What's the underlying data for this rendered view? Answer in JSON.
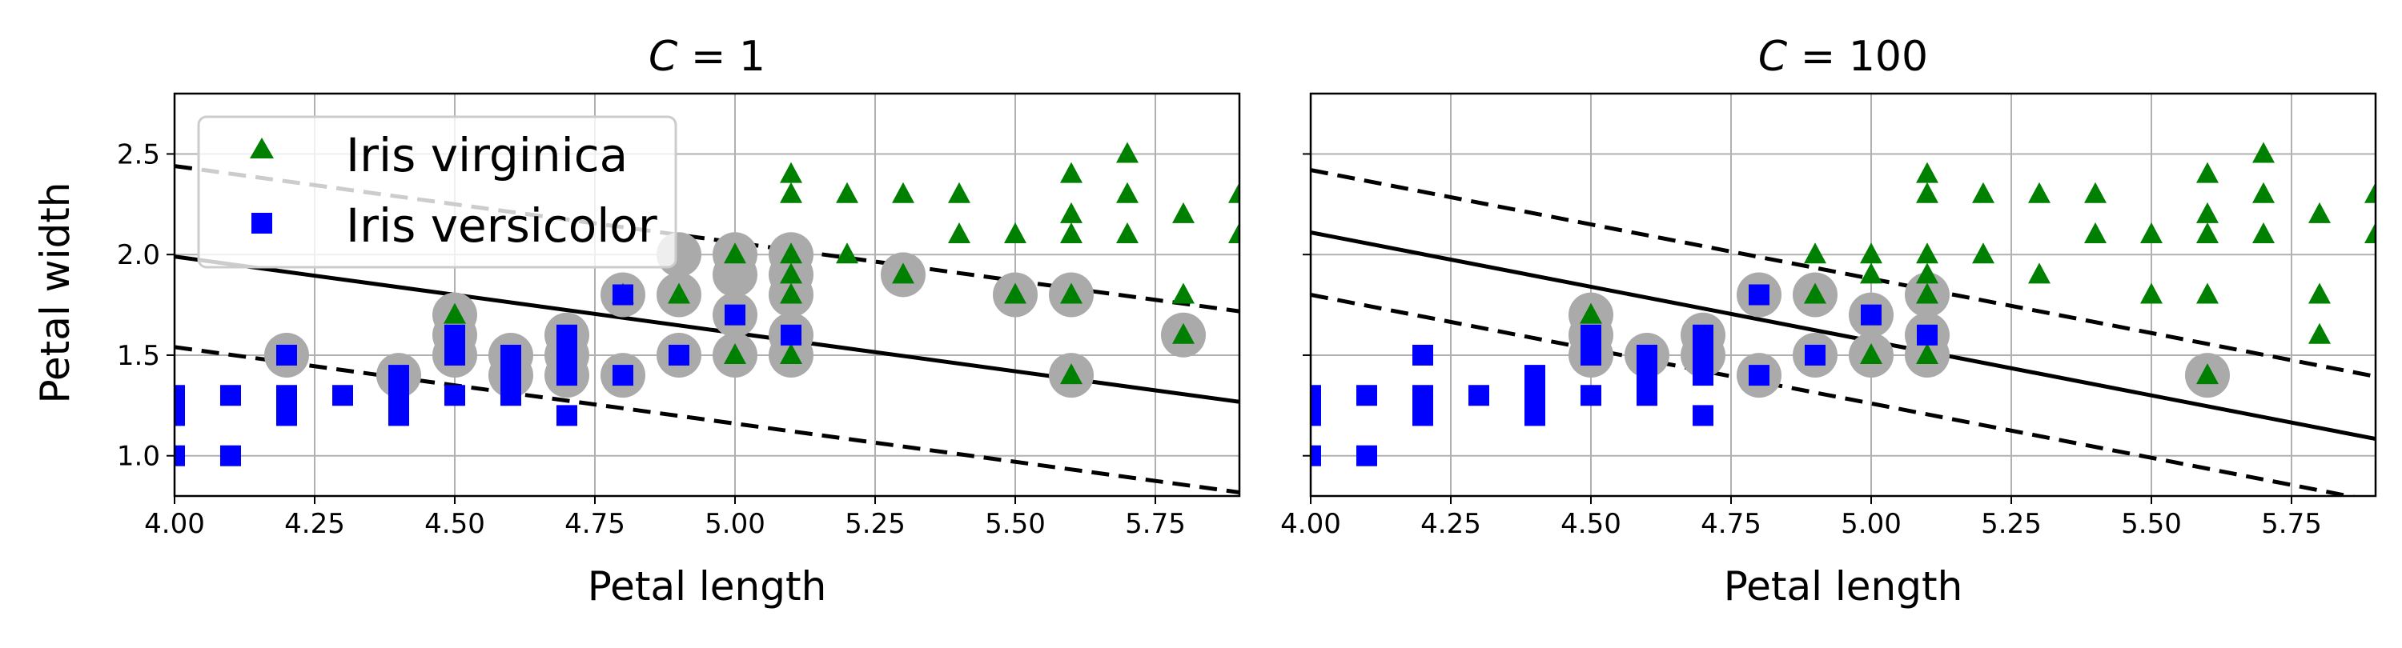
{
  "figure": {
    "ylabel": "Petal width",
    "xlabel": "Petal length",
    "legend": [
      "Iris virginica",
      "Iris versicolor"
    ]
  },
  "colors": {
    "virginica": "#008000",
    "versicolor": "#0000ff",
    "support_vector": "#aaaaaa",
    "grid": "#b0b0b0",
    "line": "#000000"
  },
  "icons": {
    "virginica_marker": "triangle-marker",
    "versicolor_marker": "square-marker"
  },
  "chart_data": [
    {
      "type": "scatter",
      "title": "C = 1",
      "title_var": "C",
      "title_eq": " = 1",
      "xlabel": "Petal length",
      "ylabel": "Petal width",
      "xlim": [
        4.0,
        5.9
      ],
      "ylim": [
        0.8,
        2.8
      ],
      "xticks": [
        4.0,
        4.25,
        4.5,
        4.75,
        5.0,
        5.25,
        5.5,
        5.75
      ],
      "xtick_labels": [
        "4.00",
        "4.25",
        "4.50",
        "4.75",
        "5.00",
        "5.25",
        "5.50",
        "5.75"
      ],
      "yticks": [
        1.0,
        1.5,
        2.0,
        2.5
      ],
      "ytick_labels": [
        "1.0",
        "1.5",
        "2.0",
        "2.5"
      ],
      "legend": {
        "entries": [
          "Iris virginica",
          "Iris versicolor"
        ],
        "placement": "upper-left"
      },
      "decision_boundary": {
        "slope": -0.38,
        "intercept_at_x4": 1.99,
        "margin": 0.45
      },
      "support_vectors": [
        [
          4.2,
          1.5
        ],
        [
          4.4,
          1.4
        ],
        [
          4.5,
          1.7
        ],
        [
          4.5,
          1.6
        ],
        [
          4.5,
          1.5
        ],
        [
          4.6,
          1.5
        ],
        [
          4.6,
          1.4
        ],
        [
          4.7,
          1.6
        ],
        [
          4.7,
          1.5
        ],
        [
          4.7,
          1.4
        ],
        [
          4.8,
          1.8
        ],
        [
          4.8,
          1.4
        ],
        [
          4.9,
          2.0
        ],
        [
          4.9,
          1.8
        ],
        [
          4.9,
          1.5
        ],
        [
          5.0,
          2.0
        ],
        [
          5.0,
          1.9
        ],
        [
          5.0,
          1.7
        ],
        [
          5.0,
          1.5
        ],
        [
          5.1,
          2.0
        ],
        [
          5.1,
          1.9
        ],
        [
          5.1,
          1.8
        ],
        [
          5.1,
          1.6
        ],
        [
          5.1,
          1.5
        ],
        [
          5.3,
          1.9
        ],
        [
          5.5,
          1.8
        ],
        [
          5.6,
          1.8
        ],
        [
          5.6,
          1.4
        ],
        [
          5.8,
          1.6
        ]
      ],
      "series": [
        {
          "name": "Iris virginica",
          "marker": "triangle",
          "points": [
            [
              4.5,
              1.7
            ],
            [
              4.8,
              1.8
            ],
            [
              4.9,
              1.8
            ],
            [
              5.0,
              2.0
            ],
            [
              5.0,
              1.5
            ],
            [
              5.1,
              2.4
            ],
            [
              5.1,
              2.3
            ],
            [
              5.1,
              2.0
            ],
            [
              5.1,
              1.9
            ],
            [
              5.1,
              1.8
            ],
            [
              5.1,
              1.5
            ],
            [
              5.2,
              2.3
            ],
            [
              5.2,
              2.0
            ],
            [
              5.3,
              2.3
            ],
            [
              5.3,
              1.9
            ],
            [
              5.4,
              2.3
            ],
            [
              5.4,
              2.1
            ],
            [
              5.5,
              2.1
            ],
            [
              5.5,
              1.8
            ],
            [
              5.6,
              2.4
            ],
            [
              5.6,
              2.2
            ],
            [
              5.6,
              2.1
            ],
            [
              5.6,
              1.8
            ],
            [
              5.6,
              1.4
            ],
            [
              5.7,
              2.5
            ],
            [
              5.7,
              2.3
            ],
            [
              5.7,
              2.1
            ],
            [
              5.8,
              2.2
            ],
            [
              5.8,
              1.8
            ],
            [
              5.8,
              1.6
            ],
            [
              5.9,
              2.3
            ],
            [
              5.9,
              2.1
            ]
          ]
        },
        {
          "name": "Iris versicolor",
          "marker": "square",
          "points": [
            [
              4.0,
              1.3
            ],
            [
              4.0,
              1.2
            ],
            [
              4.0,
              1.0
            ],
            [
              4.1,
              1.3
            ],
            [
              4.1,
              1.0
            ],
            [
              4.2,
              1.5
            ],
            [
              4.2,
              1.3
            ],
            [
              4.2,
              1.2
            ],
            [
              4.3,
              1.3
            ],
            [
              4.4,
              1.4
            ],
            [
              4.4,
              1.3
            ],
            [
              4.4,
              1.2
            ],
            [
              4.5,
              1.6
            ],
            [
              4.5,
              1.5
            ],
            [
              4.5,
              1.3
            ],
            [
              4.6,
              1.5
            ],
            [
              4.6,
              1.4
            ],
            [
              4.6,
              1.3
            ],
            [
              4.7,
              1.6
            ],
            [
              4.7,
              1.5
            ],
            [
              4.7,
              1.4
            ],
            [
              4.7,
              1.2
            ],
            [
              4.8,
              1.8
            ],
            [
              4.8,
              1.4
            ],
            [
              4.9,
              1.5
            ],
            [
              5.0,
              1.7
            ],
            [
              5.1,
              1.6
            ]
          ]
        }
      ]
    },
    {
      "type": "scatter",
      "title": "C = 100",
      "title_var": "C",
      "title_eq": " = 100",
      "xlabel": "Petal length",
      "ylabel": "",
      "xlim": [
        4.0,
        5.9
      ],
      "ylim": [
        0.8,
        2.8
      ],
      "xticks": [
        4.0,
        4.25,
        4.5,
        4.75,
        5.0,
        5.25,
        5.5,
        5.75
      ],
      "xtick_labels": [
        "4.00",
        "4.25",
        "4.50",
        "4.75",
        "5.00",
        "5.25",
        "5.50",
        "5.75"
      ],
      "yticks": [
        1.0,
        1.5,
        2.0,
        2.5
      ],
      "ytick_labels": [],
      "legend": null,
      "decision_boundary": {
        "slope": -0.54,
        "intercept_at_x4": 2.11,
        "margin": 0.31
      },
      "support_vectors": [
        [
          4.5,
          1.7
        ],
        [
          4.5,
          1.6
        ],
        [
          4.5,
          1.5
        ],
        [
          4.6,
          1.5
        ],
        [
          4.7,
          1.6
        ],
        [
          4.7,
          1.5
        ],
        [
          4.8,
          1.8
        ],
        [
          4.8,
          1.4
        ],
        [
          4.9,
          1.8
        ],
        [
          4.9,
          1.5
        ],
        [
          5.0,
          1.7
        ],
        [
          5.0,
          1.5
        ],
        [
          5.1,
          1.8
        ],
        [
          5.1,
          1.6
        ],
        [
          5.1,
          1.5
        ],
        [
          5.6,
          1.4
        ]
      ],
      "series": [
        {
          "name": "Iris virginica",
          "marker": "triangle",
          "points": [
            [
              4.5,
              1.7
            ],
            [
              4.9,
              2.0
            ],
            [
              4.9,
              1.8
            ],
            [
              5.0,
              2.0
            ],
            [
              5.0,
              1.9
            ],
            [
              5.0,
              1.5
            ],
            [
              5.1,
              2.4
            ],
            [
              5.1,
              2.3
            ],
            [
              5.1,
              2.0
            ],
            [
              5.1,
              1.9
            ],
            [
              5.1,
              1.8
            ],
            [
              5.1,
              1.5
            ],
            [
              5.2,
              2.3
            ],
            [
              5.2,
              2.0
            ],
            [
              5.3,
              2.3
            ],
            [
              5.3,
              1.9
            ],
            [
              5.4,
              2.3
            ],
            [
              5.4,
              2.1
            ],
            [
              5.5,
              2.1
            ],
            [
              5.5,
              1.8
            ],
            [
              5.6,
              2.4
            ],
            [
              5.6,
              2.2
            ],
            [
              5.6,
              2.1
            ],
            [
              5.6,
              1.8
            ],
            [
              5.6,
              1.4
            ],
            [
              5.7,
              2.5
            ],
            [
              5.7,
              2.3
            ],
            [
              5.7,
              2.1
            ],
            [
              5.8,
              2.2
            ],
            [
              5.8,
              1.8
            ],
            [
              5.8,
              1.6
            ],
            [
              5.9,
              2.3
            ],
            [
              5.9,
              2.1
            ]
          ]
        },
        {
          "name": "Iris versicolor",
          "marker": "square",
          "points": [
            [
              4.0,
              1.3
            ],
            [
              4.0,
              1.2
            ],
            [
              4.0,
              1.0
            ],
            [
              4.1,
              1.3
            ],
            [
              4.1,
              1.0
            ],
            [
              4.2,
              1.5
            ],
            [
              4.2,
              1.3
            ],
            [
              4.2,
              1.2
            ],
            [
              4.3,
              1.3
            ],
            [
              4.4,
              1.4
            ],
            [
              4.4,
              1.3
            ],
            [
              4.4,
              1.2
            ],
            [
              4.5,
              1.6
            ],
            [
              4.5,
              1.5
            ],
            [
              4.5,
              1.3
            ],
            [
              4.6,
              1.5
            ],
            [
              4.6,
              1.4
            ],
            [
              4.6,
              1.3
            ],
            [
              4.7,
              1.6
            ],
            [
              4.7,
              1.5
            ],
            [
              4.7,
              1.4
            ],
            [
              4.7,
              1.2
            ],
            [
              4.8,
              1.8
            ],
            [
              4.8,
              1.4
            ],
            [
              4.9,
              1.5
            ],
            [
              5.0,
              1.7
            ],
            [
              5.1,
              1.6
            ]
          ]
        }
      ]
    }
  ]
}
